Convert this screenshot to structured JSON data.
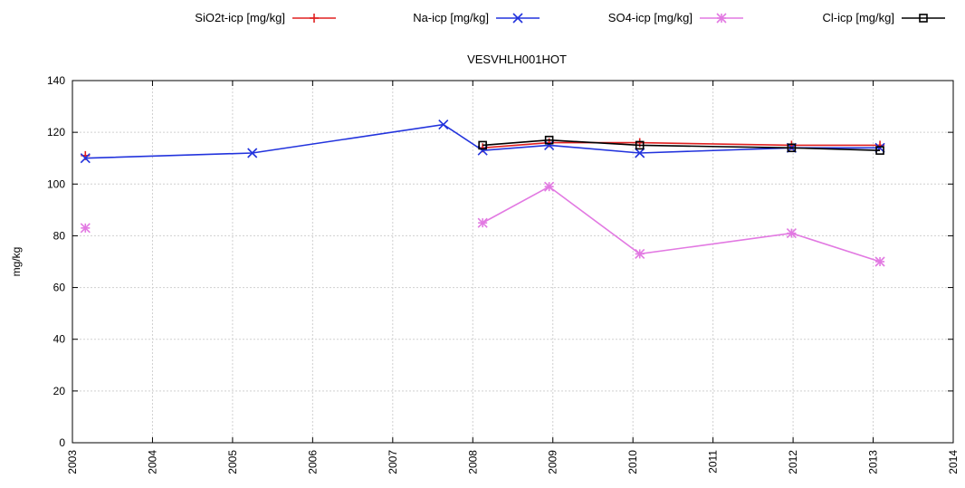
{
  "chart_data": {
    "type": "line",
    "title": "VESVHLH001HOT",
    "xlabel": "",
    "ylabel": "mg/kg",
    "xlim": [
      "2003-01-01",
      "2014-01-01"
    ],
    "ylim": [
      0,
      140
    ],
    "x_ticks": [
      "2003",
      "2004",
      "2005",
      "2006",
      "2007",
      "2008",
      "2009",
      "2010",
      "2011",
      "2012",
      "2013",
      "2014"
    ],
    "y_ticks": [
      0,
      20,
      40,
      60,
      80,
      100,
      120,
      140
    ],
    "grid": true,
    "legend_position": "top",
    "series": [
      {
        "name": "SiO2t-icp [mg/kg]",
        "color": "#e02020",
        "marker": "plus",
        "points": [
          {
            "date": "2003-03-01",
            "y": 111
          },
          {
            "date": "2008-02-15",
            "y": 114
          },
          {
            "date": "2008-12-15",
            "y": 116
          },
          {
            "date": "2010-02-01",
            "y": 116
          },
          {
            "date": "2011-12-25",
            "y": 115
          },
          {
            "date": "2013-02-01",
            "y": 115
          }
        ],
        "segments": [
          [
            1,
            2,
            3,
            4,
            5
          ]
        ]
      },
      {
        "name": "Na-icp [mg/kg]",
        "color": "#2233dd",
        "marker": "x",
        "points": [
          {
            "date": "2003-03-01",
            "y": 110
          },
          {
            "date": "2005-04-01",
            "y": 112
          },
          {
            "date": "2007-08-20",
            "y": 123
          },
          {
            "date": "2008-02-15",
            "y": 113
          },
          {
            "date": "2008-12-15",
            "y": 115
          },
          {
            "date": "2010-02-01",
            "y": 112
          },
          {
            "date": "2011-12-25",
            "y": 114
          },
          {
            "date": "2013-02-01",
            "y": 114
          }
        ],
        "segments": [
          [
            0,
            1,
            2,
            3,
            4,
            5,
            6,
            7
          ]
        ]
      },
      {
        "name": "SO4-icp [mg/kg]",
        "color": "#e279e2",
        "marker": "star",
        "points": [
          {
            "date": "2003-03-01",
            "y": 83
          },
          {
            "date": "2008-02-15",
            "y": 85
          },
          {
            "date": "2008-12-15",
            "y": 99
          },
          {
            "date": "2010-02-01",
            "y": 73
          },
          {
            "date": "2011-12-25",
            "y": 81
          },
          {
            "date": "2013-02-01",
            "y": 70
          }
        ],
        "segments": [
          [
            1,
            2,
            3,
            4,
            5
          ]
        ]
      },
      {
        "name": "Cl-icp [mg/kg]",
        "color": "#000000",
        "marker": "square",
        "points": [
          {
            "date": "2008-02-15",
            "y": 115
          },
          {
            "date": "2008-12-15",
            "y": 117
          },
          {
            "date": "2010-02-01",
            "y": 115
          },
          {
            "date": "2011-12-25",
            "y": 114
          },
          {
            "date": "2013-02-01",
            "y": 113
          }
        ],
        "segments": [
          [
            0,
            1,
            2,
            3,
            4
          ]
        ]
      }
    ]
  }
}
